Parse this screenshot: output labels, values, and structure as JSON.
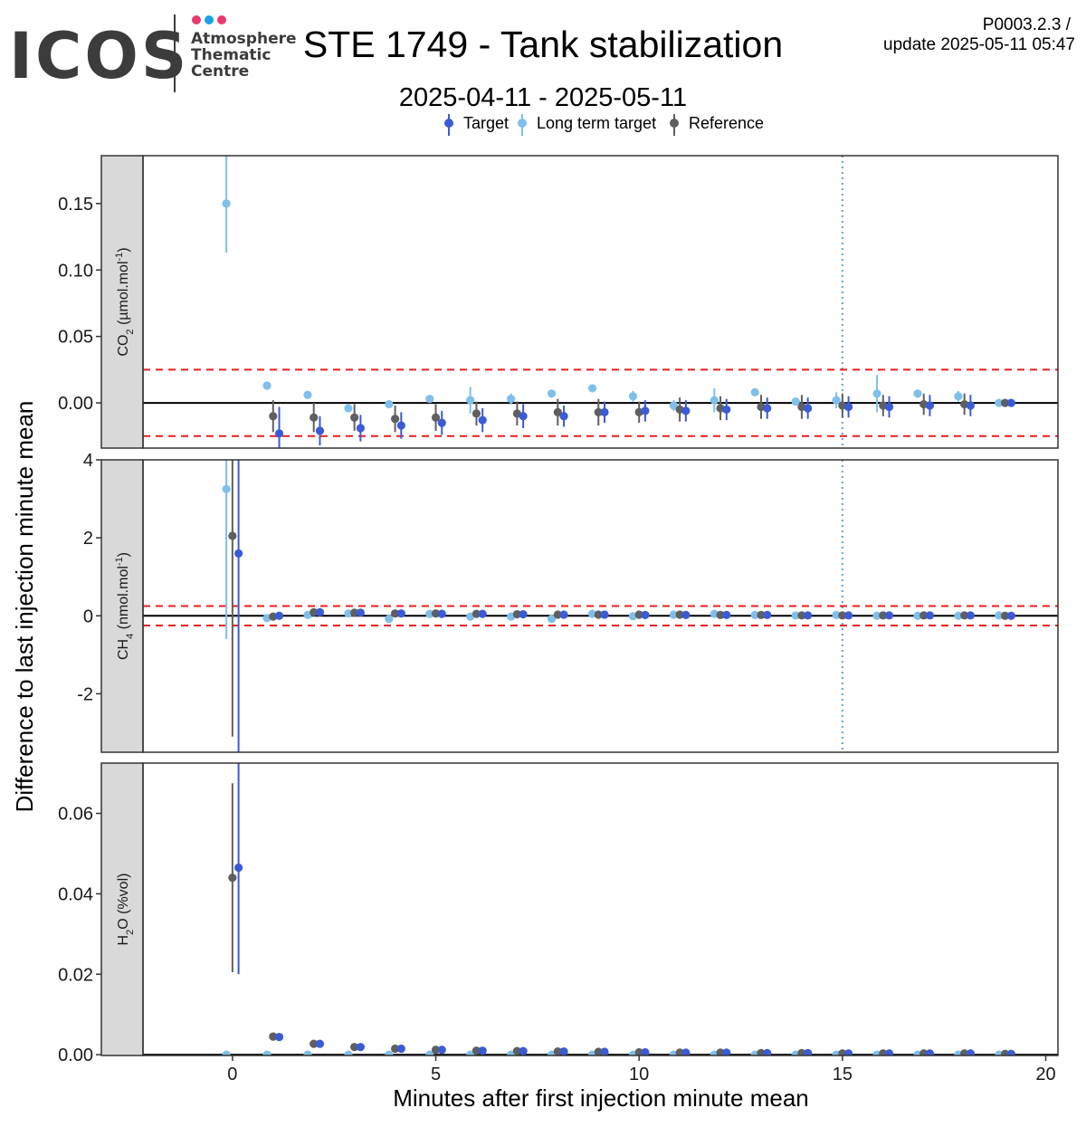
{
  "logo": {
    "text": "ICOS",
    "line1": "Atmosphere",
    "line2": "Thematic",
    "line3": "Centre",
    "dot_colors": [
      "#e8396e",
      "#1aa0e8",
      "#e8396e"
    ]
  },
  "header": {
    "version": "P0003.2.3 /",
    "update": "update  2025-05-11 05:47"
  },
  "colors": {
    "target": "#3b5bd6",
    "long_term_target": "#7fbfea",
    "reference": "#5f5f5f",
    "threshold": "#ee1c1c",
    "vline": "#6a9fd0",
    "strip_bg": "#d9d9d9"
  },
  "chart_data": {
    "type": "scatter",
    "title": "STE 1749 - Tank stabilization",
    "subtitle": "2025-04-11 - 2025-05-11",
    "xlabel": "Minutes after first injection minute mean",
    "ylabel": "Difference to last injection minute mean",
    "legend": {
      "placement": "top",
      "entries": [
        "Target",
        "Long term target",
        "Reference"
      ]
    },
    "x_ticks": [
      0,
      5,
      10,
      15,
      20
    ],
    "xlim": [
      -2.2,
      20.3
    ],
    "vline_x": 15,
    "grid": false,
    "panels": [
      {
        "strip_label": "CO",
        "strip_sub": "2",
        "strip_unit": " (µmol.mol",
        "strip_sup": "-1",
        "strip_end": ")",
        "ylim": [
          -0.034,
          0.186
        ],
        "y_ticks": [
          0.15,
          0.1,
          0.05,
          0.0
        ],
        "y_tick_labels": [
          "0.15",
          "0.10",
          "0.05",
          "0.00"
        ],
        "thresholds": [
          0.025,
          -0.025
        ],
        "series": [
          {
            "name": "Long term target",
            "key": "long_term_target",
            "x": [
              -0.15,
              0.85,
              1.85,
              2.85,
              3.85,
              4.85,
              5.85,
              6.85,
              7.85,
              8.85,
              9.85,
              10.85,
              11.85,
              12.85,
              13.85,
              14.85,
              15.85,
              16.85,
              17.85,
              18.85
            ],
            "y": [
              0.15,
              0.013,
              0.006,
              -0.004,
              -0.001,
              0.003,
              0.002,
              0.003,
              0.007,
              0.011,
              0.005,
              -0.002,
              0.002,
              0.008,
              0.001,
              0.002,
              0.007,
              0.007,
              0.005,
              0.0
            ],
            "err": [
              0.037,
              0,
              0,
              0.002,
              0,
              0,
              0.01,
              0.004,
              0,
              0,
              0.004,
              0.004,
              0.009,
              0,
              0,
              0.006,
              0.014,
              0,
              0.004,
              0
            ]
          },
          {
            "name": "Reference",
            "key": "reference",
            "x": [
              1.0,
              2.0,
              3.0,
              4.0,
              5.0,
              6.0,
              7.0,
              8.0,
              9.0,
              10.0,
              11.0,
              12.0,
              13.0,
              14.0,
              15.0,
              16.0,
              17.0,
              18.0,
              19.0
            ],
            "y": [
              -0.01,
              -0.011,
              -0.011,
              -0.012,
              -0.011,
              -0.008,
              -0.008,
              -0.007,
              -0.007,
              -0.007,
              -0.005,
              -0.004,
              -0.003,
              -0.003,
              -0.002,
              -0.002,
              -0.001,
              -0.001,
              0.0
            ],
            "err": [
              0.012,
              0.011,
              0.01,
              0.01,
              0.01,
              0.009,
              0.009,
              0.01,
              0.01,
              0.008,
              0.009,
              0.009,
              0.009,
              0.009,
              0.009,
              0.008,
              0.008,
              0.008,
              0.001
            ]
          },
          {
            "name": "Target",
            "key": "target",
            "x": [
              1.15,
              2.15,
              3.15,
              4.15,
              5.15,
              6.15,
              7.15,
              8.15,
              9.15,
              10.15,
              11.15,
              12.15,
              13.15,
              14.15,
              15.15,
              16.15,
              17.15,
              18.15,
              19.15
            ],
            "y": [
              -0.023,
              -0.021,
              -0.019,
              -0.017,
              -0.015,
              -0.013,
              -0.01,
              -0.01,
              -0.007,
              -0.006,
              -0.006,
              -0.005,
              -0.004,
              -0.004,
              -0.003,
              -0.003,
              -0.002,
              -0.002,
              0.0
            ],
            "err": [
              0.02,
              0.011,
              0.01,
              0.01,
              0.009,
              0.009,
              0.009,
              0.008,
              0.008,
              0.008,
              0.008,
              0.008,
              0.008,
              0.008,
              0.008,
              0.008,
              0.008,
              0.008,
              0.002
            ]
          }
        ]
      },
      {
        "strip_label": "CH",
        "strip_sub": "4",
        "strip_unit": " (nmol.mol",
        "strip_sup": "-1",
        "strip_end": ")",
        "ylim": [
          -3.5,
          4.0
        ],
        "y_ticks": [
          4,
          2,
          0,
          -2
        ],
        "y_tick_labels": [
          "4",
          "2",
          "0",
          "-2"
        ],
        "thresholds": [
          0.25,
          -0.25
        ],
        "series": [
          {
            "name": "Long term target",
            "key": "long_term_target",
            "x": [
              -0.15,
              0.85,
              1.85,
              2.85,
              3.85,
              4.85,
              5.85,
              6.85,
              7.85,
              8.85,
              9.85,
              10.85,
              11.85,
              12.85,
              13.85,
              14.85,
              15.85,
              16.85,
              17.85,
              18.85
            ],
            "y": [
              3.25,
              -0.06,
              0.02,
              0.06,
              -0.08,
              0.05,
              -0.02,
              -0.02,
              -0.08,
              0.05,
              -0.01,
              0.03,
              0.05,
              0.02,
              0.01,
              0.02,
              0.0,
              0.0,
              0.0,
              0.01
            ],
            "err": [
              3.85,
              0,
              0,
              0,
              0,
              0,
              0,
              0,
              0,
              0,
              0,
              0,
              0,
              0,
              0,
              0,
              0,
              0,
              0,
              0
            ]
          },
          {
            "name": "Reference",
            "key": "reference",
            "x": [
              0.0,
              1.0,
              2.0,
              3.0,
              4.0,
              5.0,
              6.0,
              7.0,
              8.0,
              9.0,
              10.0,
              11.0,
              12.0,
              13.0,
              14.0,
              15.0,
              16.0,
              17.0,
              18.0,
              19.0
            ],
            "y": [
              2.05,
              -0.02,
              0.09,
              0.08,
              0.06,
              0.06,
              0.05,
              0.04,
              0.03,
              0.03,
              0.03,
              0.03,
              0.02,
              0.02,
              0.01,
              0.01,
              0.01,
              0.01,
              0.01,
              0.0
            ],
            "err": [
              5.15,
              0,
              0,
              0,
              0,
              0,
              0,
              0,
              0,
              0,
              0,
              0,
              0,
              0,
              0,
              0,
              0,
              0,
              0,
              0
            ]
          },
          {
            "name": "Target",
            "key": "target",
            "x": [
              0.15,
              1.15,
              2.15,
              3.15,
              4.15,
              5.15,
              6.15,
              7.15,
              8.15,
              9.15,
              10.15,
              11.15,
              12.15,
              13.15,
              14.15,
              15.15,
              16.15,
              17.15,
              18.15,
              19.15
            ],
            "y": [
              1.6,
              0.0,
              0.09,
              0.08,
              0.06,
              0.05,
              0.05,
              0.04,
              0.03,
              0.03,
              0.02,
              0.02,
              0.02,
              0.02,
              0.01,
              0.01,
              0.01,
              0.01,
              0.01,
              0.0
            ],
            "err": [
              5.2,
              0,
              0,
              0,
              0,
              0,
              0,
              0,
              0,
              0,
              0,
              0,
              0,
              0,
              0,
              0,
              0,
              0,
              0,
              0
            ]
          }
        ]
      },
      {
        "strip_label": "H",
        "strip_sub": "2",
        "strip_unit": "O (%vol)",
        "strip_sup": "",
        "strip_end": "",
        "ylim": [
          -0.0002,
          0.0725
        ],
        "y_ticks": [
          0.06,
          0.04,
          0.02,
          0.0
        ],
        "y_tick_labels": [
          "0.06",
          "0.04",
          "0.02",
          "0.00"
        ],
        "thresholds": [],
        "series": [
          {
            "name": "Long term target",
            "key": "long_term_target",
            "x": [
              -0.15,
              0.85,
              1.85,
              2.85,
              3.85,
              4.85,
              5.85,
              6.85,
              7.85,
              8.85,
              9.85,
              10.85,
              11.85,
              12.85,
              13.85,
              14.85,
              15.85,
              16.85,
              17.85,
              18.85
            ],
            "y": [
              0.0,
              0.0,
              0.0,
              0.0,
              0.0,
              0.0,
              0.0,
              0.0,
              0.0,
              0.0,
              0.0,
              0.0,
              0.0,
              0.0,
              0.0,
              0.0,
              0.0,
              0.0,
              0.0,
              0.0
            ],
            "err": [
              0,
              0,
              0,
              0,
              0,
              0,
              0,
              0,
              0,
              0,
              0,
              0,
              0,
              0,
              0,
              0,
              0,
              0,
              0,
              0
            ]
          },
          {
            "name": "Reference",
            "key": "reference",
            "x": [
              0.0,
              1.0,
              2.0,
              3.0,
              4.0,
              5.0,
              6.0,
              7.0,
              8.0,
              9.0,
              10.0,
              11.0,
              12.0,
              13.0,
              14.0,
              15.0,
              16.0,
              17.0,
              18.0,
              19.0
            ],
            "y": [
              0.044,
              0.0045,
              0.0027,
              0.0019,
              0.0015,
              0.0012,
              0.001,
              0.0009,
              0.0008,
              0.0007,
              0.0006,
              0.0005,
              0.0005,
              0.0004,
              0.0004,
              0.0003,
              0.0003,
              0.0003,
              0.0003,
              0.0002
            ],
            "err": [
              0.0235,
              0,
              0,
              0,
              0,
              0,
              0,
              0,
              0,
              0,
              0,
              0,
              0,
              0,
              0,
              0,
              0,
              0,
              0,
              0
            ]
          },
          {
            "name": "Target",
            "key": "target",
            "x": [
              0.15,
              1.15,
              2.15,
              3.15,
              4.15,
              5.15,
              6.15,
              7.15,
              8.15,
              9.15,
              10.15,
              11.15,
              12.15,
              13.15,
              14.15,
              15.15,
              16.15,
              17.15,
              18.15,
              19.15
            ],
            "y": [
              0.0465,
              0.0044,
              0.0027,
              0.0019,
              0.0015,
              0.0012,
              0.001,
              0.0009,
              0.0008,
              0.0007,
              0.0006,
              0.0005,
              0.0005,
              0.0004,
              0.0004,
              0.0003,
              0.0003,
              0.0003,
              0.0003,
              0.0002
            ],
            "err": [
              0.0265,
              0,
              0,
              0,
              0,
              0,
              0,
              0,
              0,
              0,
              0,
              0,
              0,
              0,
              0,
              0,
              0,
              0,
              0,
              0
            ]
          }
        ]
      }
    ]
  }
}
